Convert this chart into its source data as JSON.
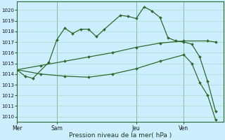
{
  "xlabel": "Pression niveau de la mer( hPa )",
  "bg_color": "#cceeff",
  "line_color": "#2d6a2d",
  "grid_color": "#aaddcc",
  "ylim": [
    1009.5,
    1020.8
  ],
  "yticks": [
    1010,
    1011,
    1012,
    1013,
    1014,
    1015,
    1016,
    1017,
    1018,
    1019,
    1020
  ],
  "day_labels": [
    "Mer",
    "Sam",
    "Jeu",
    "Ven"
  ],
  "day_positions": [
    0,
    5,
    15,
    21
  ],
  "vline_positions": [
    0,
    5,
    15,
    21
  ],
  "xlim": [
    0,
    26
  ],
  "series1_x": [
    0,
    1,
    2,
    4,
    5,
    6,
    7,
    8,
    9,
    10,
    11,
    13,
    14,
    15,
    16,
    17,
    18,
    19,
    20,
    21,
    22,
    23,
    24,
    25
  ],
  "series1_y": [
    1014.4,
    1013.8,
    1013.6,
    1015.1,
    1017.2,
    1018.3,
    1017.8,
    1018.2,
    1018.2,
    1017.5,
    1018.2,
    1019.5,
    1019.4,
    1019.2,
    1020.3,
    1019.9,
    1019.3,
    1017.4,
    1017.1,
    1017.0,
    1016.8,
    1015.6,
    1013.3,
    1010.5
  ],
  "series2_x": [
    0,
    3,
    6,
    9,
    12,
    15,
    18,
    21,
    24,
    25
  ],
  "series2_y": [
    1014.4,
    1014.8,
    1015.2,
    1015.6,
    1016.0,
    1016.5,
    1016.9,
    1017.1,
    1017.1,
    1017.0
  ],
  "series3_x": [
    0,
    3,
    6,
    9,
    12,
    15,
    18,
    21,
    22,
    23,
    24,
    25
  ],
  "series3_y": [
    1014.4,
    1014.0,
    1013.8,
    1013.7,
    1014.0,
    1014.5,
    1015.2,
    1015.8,
    1015.0,
    1013.2,
    1012.0,
    1009.7
  ]
}
